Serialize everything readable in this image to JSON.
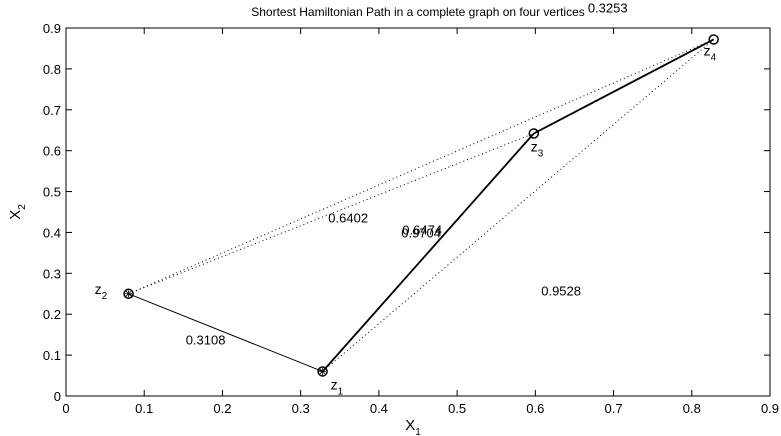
{
  "chart_data": {
    "type": "graph",
    "title": "Shortest Hamiltonian Path in a complete graph on four vertices",
    "xlabel": {
      "text": "X",
      "sub": "1"
    },
    "ylabel": {
      "text": "X",
      "sub": "2"
    },
    "xlim": [
      0,
      0.9
    ],
    "ylim": [
      0,
      0.9
    ],
    "xticks": [
      0,
      0.1,
      0.2,
      0.3,
      0.4,
      0.5,
      0.6,
      0.7,
      0.8,
      0.9
    ],
    "yticks": [
      0,
      0.1,
      0.2,
      0.3,
      0.4,
      0.5,
      0.6,
      0.7,
      0.8,
      0.9
    ],
    "color": "#000000",
    "vertices": [
      {
        "name": "z",
        "sub": "1",
        "x": 0.328,
        "y": 0.06,
        "marker": "circle-star"
      },
      {
        "name": "z",
        "sub": "2",
        "x": 0.08,
        "y": 0.25,
        "marker": "circle-star"
      },
      {
        "name": "z",
        "sub": "3",
        "x": 0.598,
        "y": 0.642,
        "marker": "circle"
      },
      {
        "name": "z",
        "sub": "4",
        "x": 0.828,
        "y": 0.872,
        "marker": "circle"
      }
    ],
    "edges": [
      {
        "from": 0,
        "to": 1,
        "weight": 0.3108,
        "style": "thin"
      },
      {
        "from": 0,
        "to": 2,
        "weight": 0.6402,
        "style": "thick"
      },
      {
        "from": 2,
        "to": 3,
        "weight": 0.3253,
        "style": "thick"
      },
      {
        "from": 1,
        "to": 2,
        "weight": 0.6474,
        "style": "dotted"
      },
      {
        "from": 1,
        "to": 3,
        "weight": 0.9704,
        "style": "dotted"
      },
      {
        "from": 0,
        "to": 3,
        "weight": 0.9528,
        "style": "dotted"
      }
    ]
  }
}
